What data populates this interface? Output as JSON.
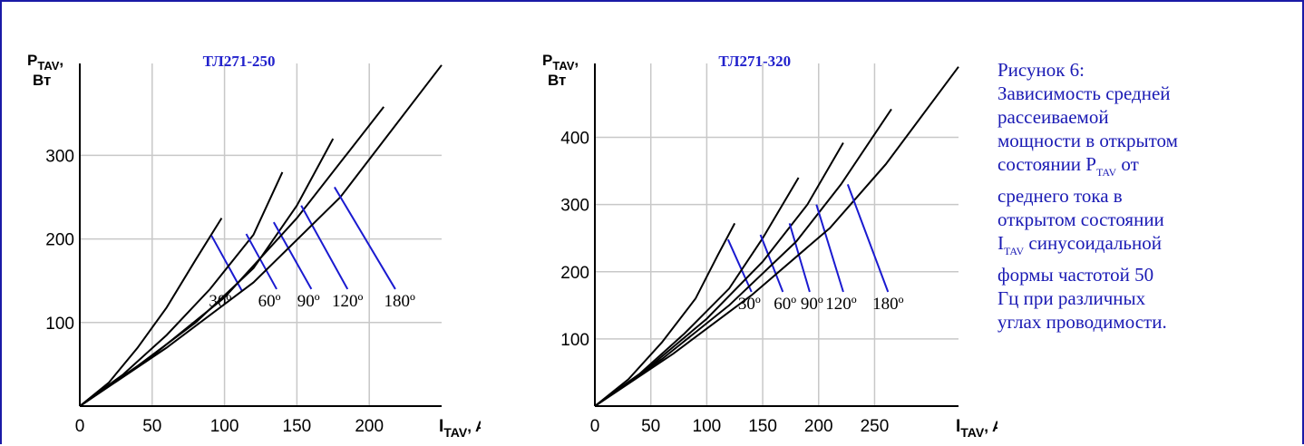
{
  "chart_data": [
    {
      "type": "line",
      "title": "ТЛ271-250",
      "ylabel_main": "P",
      "ylabel_sub": "TAV",
      "ylabel_unit": "Вт",
      "xlabel_main": "I",
      "xlabel_sub": "TAV",
      "xlabel_unit": ", A",
      "xlim": [
        0,
        250
      ],
      "ylim": [
        0,
        410
      ],
      "xticks": [
        0,
        50,
        100,
        150,
        200
      ],
      "yticks": [
        100,
        200,
        300
      ],
      "grid": true,
      "series": [
        {
          "name": "30º",
          "x": [
            0,
            20,
            40,
            60,
            80,
            98
          ],
          "y": [
            0,
            28,
            70,
            118,
            175,
            225
          ],
          "label_x": 97,
          "label_y": 128,
          "leader": [
            [
              91,
              204
            ],
            [
              112,
              138
            ]
          ]
        },
        {
          "name": "60º",
          "x": [
            0,
            30,
            60,
            90,
            120,
            140
          ],
          "y": [
            0,
            38,
            85,
            140,
            205,
            280
          ],
          "label_x": 131,
          "label_y": 128,
          "leader": [
            [
              115,
              206
            ],
            [
              136,
              140
            ]
          ]
        },
        {
          "name": "90º",
          "x": [
            0,
            40,
            80,
            120,
            150,
            175
          ],
          "y": [
            0,
            48,
            100,
            165,
            240,
            320
          ],
          "label_x": 158,
          "label_y": 128,
          "leader": [
            [
              134,
              220
            ],
            [
              160,
              140
            ]
          ]
        },
        {
          "name": "120º",
          "x": [
            0,
            50,
            100,
            150,
            210
          ],
          "y": [
            0,
            60,
            130,
            225,
            358
          ],
          "label_x": 185,
          "label_y": 128,
          "leader": [
            [
              153,
              240
            ],
            [
              185,
              140
            ]
          ]
        },
        {
          "name": "180º",
          "x": [
            0,
            60,
            120,
            180,
            250
          ],
          "y": [
            0,
            70,
            148,
            250,
            408
          ],
          "label_x": 221,
          "label_y": 128,
          "leader": [
            [
              176,
              262
            ],
            [
              218,
              140
            ]
          ]
        }
      ]
    },
    {
      "type": "line",
      "title": "ТЛ271-320",
      "ylabel_main": "P",
      "ylabel_sub": "TAV",
      "ylabel_unit": "Вт",
      "xlabel_main": "I",
      "xlabel_sub": "TAV",
      "xlabel_unit": ", A",
      "xlim": [
        0,
        325
      ],
      "ylim": [
        0,
        510
      ],
      "xticks": [
        0,
        50,
        100,
        150,
        200,
        250
      ],
      "yticks": [
        100,
        200,
        300,
        400
      ],
      "grid": true,
      "series": [
        {
          "name": "30º",
          "x": [
            0,
            30,
            60,
            90,
            110,
            125
          ],
          "y": [
            0,
            40,
            95,
            160,
            225,
            272
          ],
          "label_x": 138,
          "label_y": 155,
          "leader": [
            [
              119,
              248
            ],
            [
              140,
              170
            ]
          ]
        },
        {
          "name": "60º",
          "x": [
            0,
            40,
            80,
            120,
            150,
            182
          ],
          "y": [
            0,
            48,
            108,
            175,
            250,
            340
          ],
          "label_x": 170,
          "label_y": 155,
          "leader": [
            [
              148,
              255
            ],
            [
              168,
              170
            ]
          ]
        },
        {
          "name": "90º",
          "x": [
            0,
            50,
            100,
            150,
            190,
            222
          ],
          "y": [
            0,
            60,
            130,
            215,
            300,
            392
          ],
          "label_x": 194,
          "label_y": 155,
          "leader": [
            [
              174,
              272
            ],
            [
              192,
              170
            ]
          ]
        },
        {
          "name": "120º",
          "x": [
            0,
            60,
            120,
            180,
            220,
            265
          ],
          "y": [
            0,
            70,
            150,
            245,
            330,
            442
          ],
          "label_x": 220,
          "label_y": 155,
          "leader": [
            [
              198,
              300
            ],
            [
              222,
              170
            ]
          ]
        },
        {
          "name": "180º",
          "x": [
            0,
            70,
            140,
            210,
            260,
            325
          ],
          "y": [
            0,
            78,
            165,
            265,
            360,
            505
          ],
          "label_x": 262,
          "label_y": 155,
          "leader": [
            [
              226,
              330
            ],
            [
              262,
              170
            ]
          ]
        }
      ]
    }
  ],
  "caption": {
    "line1": "Рисунок 6:",
    "line2": "Зависимость средней",
    "line3": "рассеиваемой",
    "line4": "мощности в открытом",
    "line5a": "состоянии P",
    "line5sub": "TAV",
    "line5b": " от",
    "line6": "среднего тока в",
    "line7": "открытом состоянии",
    "line8a": "I",
    "line8sub": "TAV",
    "line8b": " синусоидальной",
    "line9": "формы частотой 50",
    "line10": "Гц при различных",
    "line11": "углах проводимости."
  },
  "colors": {
    "frame": "#1a1aa6",
    "caption": "#1a1ab4",
    "title": "#2222cc",
    "leader": "#1a1ad0",
    "grid": "#c8c8c8",
    "curve": "#000000"
  }
}
